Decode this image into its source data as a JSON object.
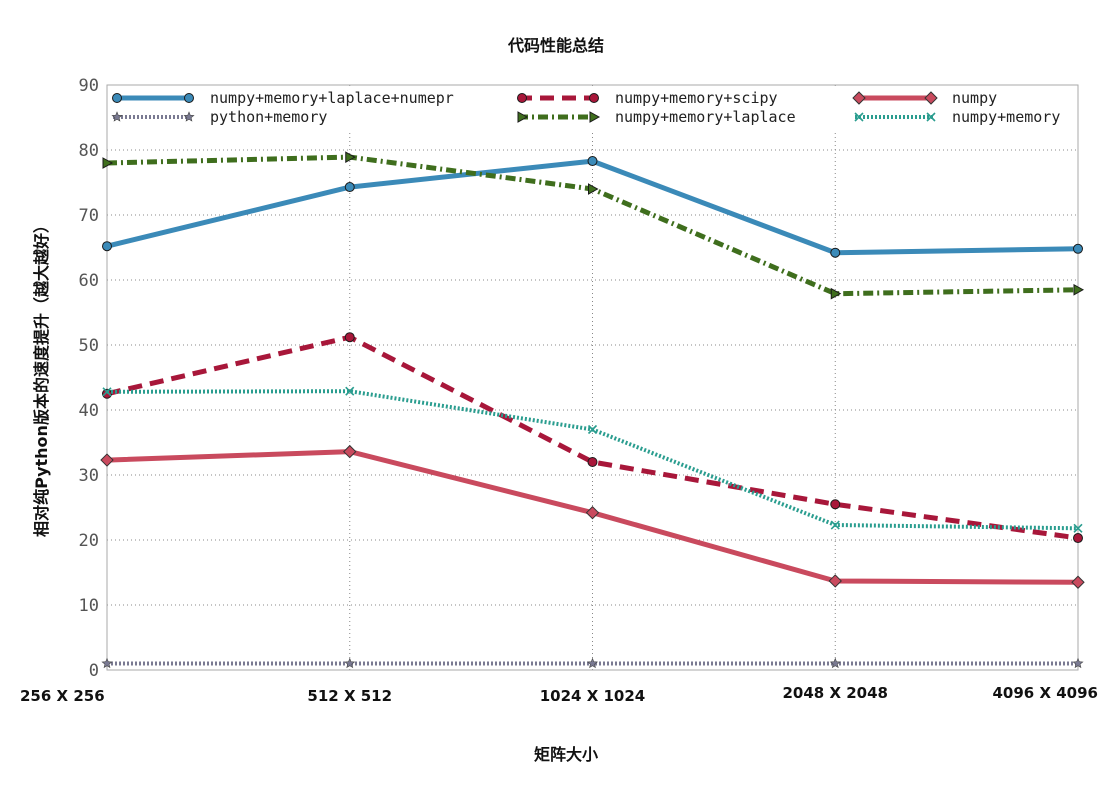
{
  "chart_data": {
    "type": "line",
    "title": "代码性能总结",
    "xlabel": "矩阵大小",
    "ylabel": "相对纯Python版本的速度提升（越大越好）",
    "x": [
      256,
      512,
      1024,
      2048,
      4096
    ],
    "categories": [
      "256 X 256",
      "512 X 512",
      "1024 X 1024",
      "2048 X 2048",
      "4096 X 4096"
    ],
    "ylim": [
      0,
      90
    ],
    "yticks": [
      0,
      10,
      20,
      30,
      40,
      50,
      60,
      70,
      80,
      90
    ],
    "grid": true,
    "legend_position": "top",
    "series": [
      {
        "name": "numpy+memory+laplace+numepr",
        "values": [
          65.2,
          74.3,
          78.3,
          64.2,
          64.8
        ],
        "color": "#3b8ab8",
        "dash": "solid",
        "marker": "circle"
      },
      {
        "name": "numpy+memory+scipy",
        "values": [
          42.5,
          51.2,
          32.0,
          25.5,
          20.3
        ],
        "color": "#a8173a",
        "dash": "dashed",
        "marker": "circle"
      },
      {
        "name": "numpy",
        "values": [
          32.3,
          33.6,
          24.2,
          13.7,
          13.5
        ],
        "color": "#c94a5e",
        "dash": "solid",
        "marker": "diamond"
      },
      {
        "name": "python+memory",
        "values": [
          1.0,
          1.0,
          1.0,
          1.0,
          1.0
        ],
        "color": "#7a7a92",
        "dash": "dotted",
        "marker": "star"
      },
      {
        "name": "numpy+memory+laplace",
        "values": [
          78.0,
          78.9,
          74.0,
          57.9,
          58.5
        ],
        "color": "#3f6e1d",
        "dash": "dashdot",
        "marker": "triangle"
      },
      {
        "name": "numpy+memory",
        "values": [
          42.8,
          42.9,
          37.0,
          22.3,
          21.8
        ],
        "color": "#2a9d8f",
        "dash": "dotted",
        "marker": "x"
      }
    ]
  }
}
